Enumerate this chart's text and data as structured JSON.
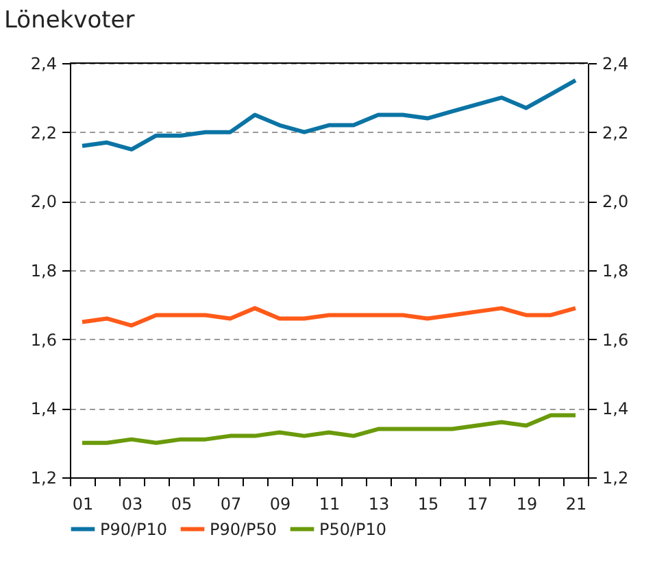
{
  "chart_data": {
    "type": "line",
    "title": "Lönekvoter",
    "categories": [
      "01",
      null,
      "03",
      null,
      "05",
      null,
      "07",
      null,
      "09",
      null,
      "11",
      null,
      "13",
      null,
      "15",
      null,
      "17",
      null,
      "19",
      null,
      "21"
    ],
    "series": [
      {
        "name": "P90/P10",
        "color": "#0b74a5",
        "values": [
          2.16,
          2.17,
          2.15,
          2.19,
          2.19,
          2.2,
          2.2,
          2.25,
          2.22,
          2.2,
          2.22,
          2.22,
          2.25,
          2.25,
          2.24,
          2.26,
          2.28,
          2.3,
          2.27,
          2.31,
          2.35
        ]
      },
      {
        "name": "P90/P50",
        "color": "#ff5a19",
        "values": [
          1.65,
          1.66,
          1.64,
          1.67,
          1.67,
          1.67,
          1.66,
          1.69,
          1.66,
          1.66,
          1.67,
          1.67,
          1.67,
          1.67,
          1.66,
          1.67,
          1.68,
          1.69,
          1.67,
          1.67,
          1.69
        ]
      },
      {
        "name": "P50/P10",
        "color": "#6a9a0a",
        "values": [
          1.3,
          1.3,
          1.31,
          1.3,
          1.31,
          1.31,
          1.32,
          1.32,
          1.33,
          1.32,
          1.33,
          1.32,
          1.34,
          1.34,
          1.34,
          1.34,
          1.35,
          1.36,
          1.35,
          1.38,
          1.38
        ]
      }
    ],
    "ylim": [
      1.2,
      2.4
    ],
    "yticks": [
      {
        "value": 1.2,
        "label": "1,2"
      },
      {
        "value": 1.4,
        "label": "1,4"
      },
      {
        "value": 1.6,
        "label": "1,6"
      },
      {
        "value": 1.8,
        "label": "1,8"
      },
      {
        "value": 2.0,
        "label": "2,0"
      },
      {
        "value": 2.2,
        "label": "2,2"
      },
      {
        "value": 2.4,
        "label": "2,4"
      }
    ],
    "y2lim": [
      1.2,
      2.4
    ],
    "y2ticks": [
      {
        "value": 1.2,
        "label": "1,2"
      },
      {
        "value": 1.4,
        "label": "1,4"
      },
      {
        "value": 1.6,
        "label": "1,6"
      },
      {
        "value": 1.8,
        "label": "1,8"
      },
      {
        "value": 2.0,
        "label": "2,0"
      },
      {
        "value": 2.2,
        "label": "2,2"
      },
      {
        "value": 2.4,
        "label": "2,4"
      }
    ],
    "grid": "y",
    "legend": "bottom",
    "line_style": "solid"
  }
}
